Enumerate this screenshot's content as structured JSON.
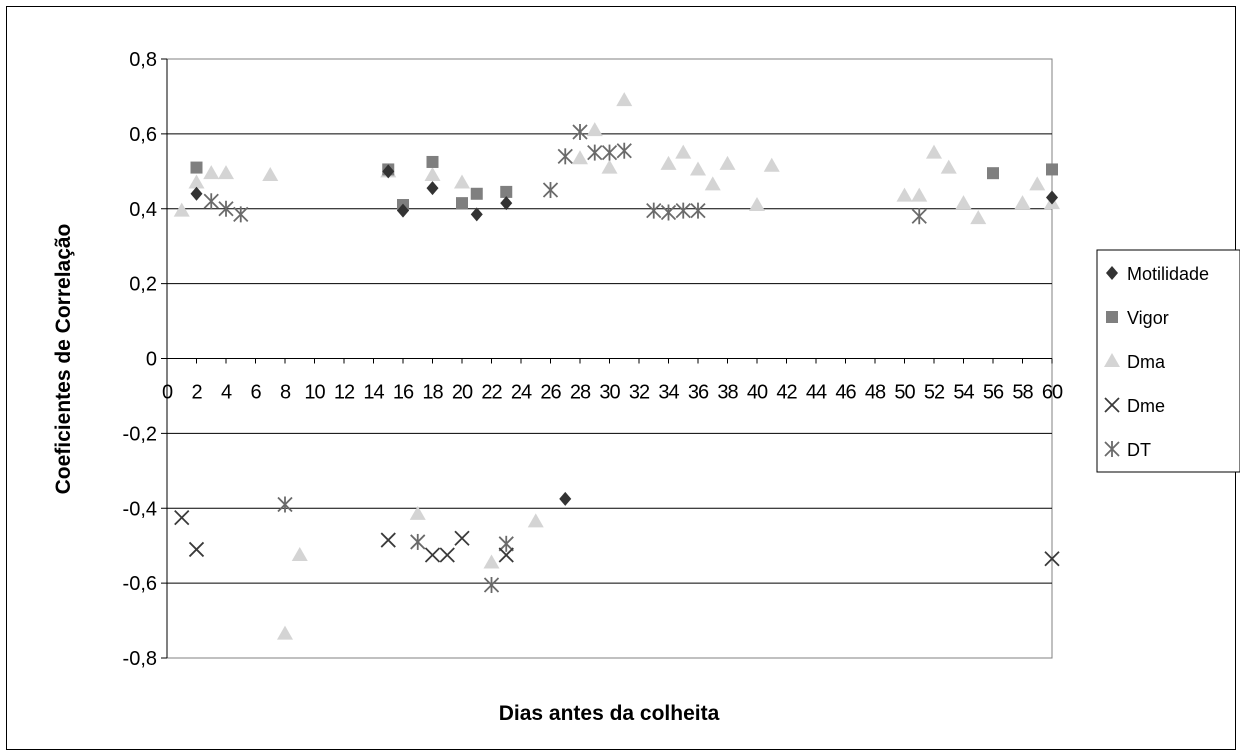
{
  "chart_data": {
    "type": "scatter",
    "xlabel": "Dias antes da colheita",
    "ylabel": "Coeficientes de Correlação",
    "ylim": [
      -0.8,
      0.8
    ],
    "yticks": [
      "0,8",
      "0,6",
      "0,4",
      "0,2",
      "0",
      "-0,2",
      "-0,4",
      "-0,6",
      "-0,8"
    ],
    "xlim": [
      0,
      60
    ],
    "xticks": [
      0,
      2,
      4,
      6,
      8,
      10,
      12,
      14,
      16,
      18,
      20,
      22,
      24,
      26,
      28,
      30,
      32,
      34,
      36,
      38,
      40,
      42,
      44,
      46,
      48,
      50,
      52,
      54,
      56,
      58,
      60
    ],
    "grid": "horizontal",
    "legend_position": "right",
    "series": [
      {
        "name": "Motilidade",
        "marker": "diamond",
        "color": "#333333",
        "points": [
          [
            2,
            0.44
          ],
          [
            15,
            0.5
          ],
          [
            16,
            0.395
          ],
          [
            18,
            0.455
          ],
          [
            21,
            0.385
          ],
          [
            23,
            0.415
          ],
          [
            27,
            -0.375
          ],
          [
            60,
            0.43
          ]
        ]
      },
      {
        "name": "Vigor",
        "marker": "square",
        "color": "#7f7f7f",
        "points": [
          [
            2,
            0.51
          ],
          [
            15,
            0.505
          ],
          [
            16,
            0.41
          ],
          [
            18,
            0.525
          ],
          [
            20,
            0.415
          ],
          [
            21,
            0.44
          ],
          [
            23,
            0.445
          ],
          [
            56,
            0.495
          ],
          [
            60,
            0.505
          ]
        ]
      },
      {
        "name": "Dma",
        "marker": "triangle",
        "color": "#d4d4d4",
        "points": [
          [
            1,
            0.395
          ],
          [
            2,
            0.47
          ],
          [
            3,
            0.495
          ],
          [
            4,
            0.495
          ],
          [
            7,
            0.49
          ],
          [
            8,
            -0.735
          ],
          [
            9,
            -0.525
          ],
          [
            15,
            0.5
          ],
          [
            17,
            -0.415
          ],
          [
            18,
            0.49
          ],
          [
            20,
            0.47
          ],
          [
            22,
            -0.545
          ],
          [
            25,
            -0.435
          ],
          [
            28,
            0.535
          ],
          [
            29,
            0.61
          ],
          [
            30,
            0.51
          ],
          [
            31,
            0.69
          ],
          [
            34,
            0.52
          ],
          [
            35,
            0.55
          ],
          [
            36,
            0.505
          ],
          [
            37,
            0.465
          ],
          [
            38,
            0.52
          ],
          [
            40,
            0.41
          ],
          [
            41,
            0.515
          ],
          [
            50,
            0.435
          ],
          [
            51,
            0.435
          ],
          [
            52,
            0.55
          ],
          [
            53,
            0.51
          ],
          [
            54,
            0.415
          ],
          [
            55,
            0.375
          ],
          [
            58,
            0.415
          ],
          [
            59,
            0.465
          ],
          [
            60,
            0.415
          ]
        ]
      },
      {
        "name": "Dme",
        "marker": "x",
        "color": "#3a3a3a",
        "points": [
          [
            1,
            -0.425
          ],
          [
            2,
            -0.51
          ],
          [
            15,
            -0.485
          ],
          [
            18,
            -0.525
          ],
          [
            19,
            -0.525
          ],
          [
            20,
            -0.48
          ],
          [
            23,
            -0.525
          ],
          [
            60,
            -0.535
          ]
        ]
      },
      {
        "name": "DT",
        "marker": "asterisk",
        "color": "#6a6a6a",
        "points": [
          [
            3,
            0.42
          ],
          [
            4,
            0.4
          ],
          [
            5,
            0.385
          ],
          [
            8,
            -0.39
          ],
          [
            17,
            -0.49
          ],
          [
            22,
            -0.605
          ],
          [
            23,
            -0.495
          ],
          [
            26,
            0.45
          ],
          [
            27,
            0.54
          ],
          [
            28,
            0.605
          ],
          [
            29,
            0.55
          ],
          [
            30,
            0.55
          ],
          [
            31,
            0.555
          ],
          [
            33,
            0.395
          ],
          [
            34,
            0.39
          ],
          [
            35,
            0.395
          ],
          [
            36,
            0.395
          ],
          [
            51,
            0.38
          ]
        ]
      }
    ]
  }
}
